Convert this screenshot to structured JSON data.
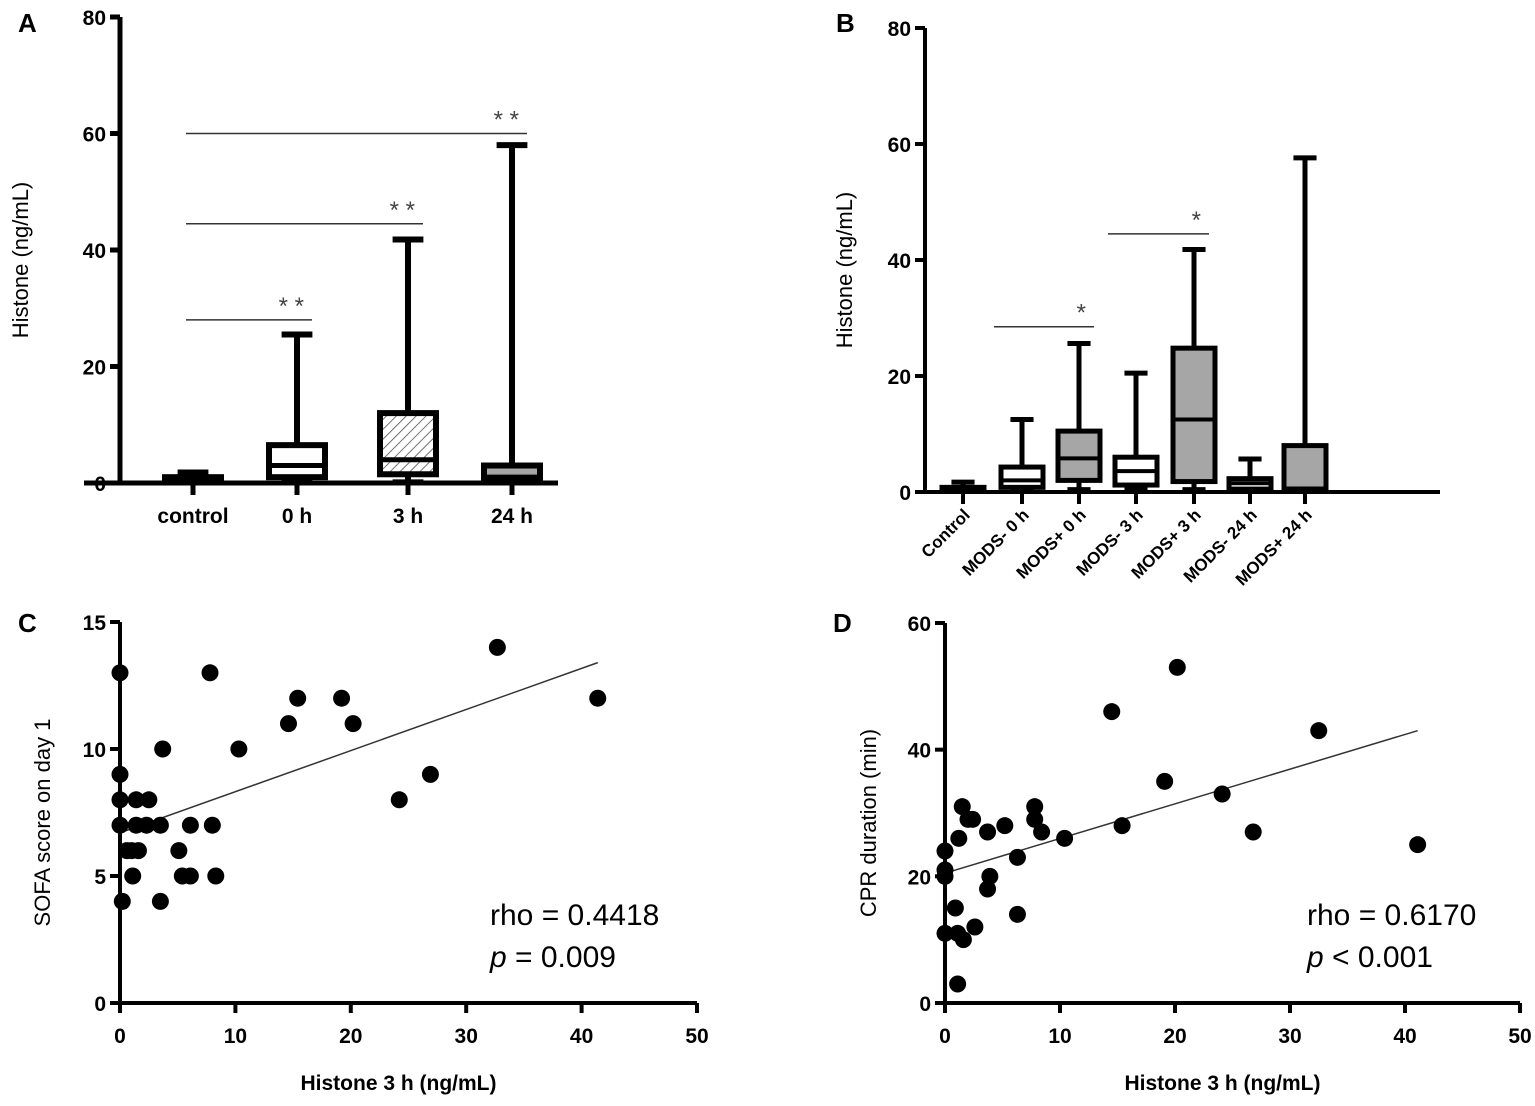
{
  "colors": {
    "ink": "#000000",
    "gray_fill": "#a6a6a6",
    "white_fill": "#ffffff",
    "sig_line": "#333333"
  },
  "chart_data": [
    {
      "panel": "A",
      "type": "box",
      "ylabel": "Histone (ng/mL)",
      "xlabel": "",
      "ylim": [
        0,
        80
      ],
      "yticks": [
        0,
        20,
        40,
        60,
        80
      ],
      "categories": [
        "control",
        "0 h",
        "3 h",
        "24 h"
      ],
      "boxes": [
        {
          "min": 0.2,
          "q1": 0.2,
          "median": 0.5,
          "q3": 1.0,
          "max": 1.8,
          "fill": "white"
        },
        {
          "min": 0.2,
          "q1": 1.0,
          "median": 3.0,
          "q3": 6.5,
          "max": 25.5,
          "fill": "white"
        },
        {
          "min": 0.2,
          "q1": 1.5,
          "median": 4.0,
          "q3": 12.0,
          "max": 41.8,
          "fill": "hatched"
        },
        {
          "min": 0.2,
          "q1": 0.5,
          "median": 1.0,
          "q3": 3.0,
          "max": 58.0,
          "fill": "gray"
        }
      ],
      "significance": [
        {
          "from": 0,
          "to": 1,
          "level": 28,
          "label": "* *"
        },
        {
          "from": 0,
          "to": 2,
          "level": 44.5,
          "label": "* *"
        },
        {
          "from": 0,
          "to": 3,
          "level": 60,
          "label": "* *"
        }
      ]
    },
    {
      "panel": "B",
      "type": "box",
      "ylabel": "Histone (ng/mL)",
      "xlabel": "",
      "ylim": [
        0,
        80
      ],
      "yticks": [
        0,
        20,
        40,
        60,
        80
      ],
      "categories": [
        "Control",
        "MODS- 0 h",
        "MODS+ 0 h",
        "MODS- 3 h",
        "MODS+ 3 h",
        "MODS- 24 h",
        "MODS+ 24 h"
      ],
      "boxes": [
        {
          "min": 0.2,
          "q1": 0.2,
          "median": 0.5,
          "q3": 0.8,
          "max": 1.7,
          "fill": "white"
        },
        {
          "min": 0.3,
          "q1": 0.8,
          "median": 2.0,
          "q3": 4.3,
          "max": 12.5,
          "fill": "white"
        },
        {
          "min": 0.5,
          "q1": 2.0,
          "median": 5.8,
          "q3": 10.5,
          "max": 25.6,
          "fill": "gray"
        },
        {
          "min": 0.5,
          "q1": 1.2,
          "median": 3.6,
          "q3": 6.0,
          "max": 20.5,
          "fill": "white"
        },
        {
          "min": 0.5,
          "q1": 1.8,
          "median": 12.5,
          "q3": 24.8,
          "max": 41.8,
          "fill": "gray"
        },
        {
          "min": 0.3,
          "q1": 0.5,
          "median": 1.5,
          "q3": 2.3,
          "max": 5.7,
          "fill": "white"
        },
        {
          "min": 0.3,
          "q1": 0.5,
          "median": 0.6,
          "q3": 8.0,
          "max": 57.6,
          "fill": "gray"
        }
      ],
      "significance": [
        {
          "from": 1,
          "to": 2,
          "level": 28.5,
          "label": "*"
        },
        {
          "from": 3,
          "to": 4,
          "level": 44.5,
          "label": "*"
        }
      ]
    },
    {
      "panel": "C",
      "type": "scatter",
      "xlabel": "Histone 3 h (ng/mL)",
      "ylabel": "SOFA  score on day 1",
      "xlim": [
        0,
        50
      ],
      "ylim": [
        0,
        15
      ],
      "xticks": [
        0,
        10,
        20,
        30,
        40,
        50
      ],
      "yticks": [
        0,
        5,
        10,
        15
      ],
      "points": [
        [
          0,
          13
        ],
        [
          0,
          9
        ],
        [
          0,
          8
        ],
        [
          0,
          7
        ],
        [
          0.2,
          4
        ],
        [
          0.6,
          6
        ],
        [
          1,
          6
        ],
        [
          1.1,
          5
        ],
        [
          1.4,
          7
        ],
        [
          1.6,
          6
        ],
        [
          1.4,
          8
        ],
        [
          2.3,
          7
        ],
        [
          2.5,
          8
        ],
        [
          3.5,
          7
        ],
        [
          3.7,
          10
        ],
        [
          3.5,
          4
        ],
        [
          5.1,
          6
        ],
        [
          5.4,
          5
        ],
        [
          6.1,
          5
        ],
        [
          6.1,
          7
        ],
        [
          7.8,
          13
        ],
        [
          8,
          7
        ],
        [
          8.3,
          5
        ],
        [
          10.3,
          10
        ],
        [
          14.6,
          11
        ],
        [
          15.4,
          12
        ],
        [
          19.2,
          12
        ],
        [
          20.2,
          11
        ],
        [
          24.2,
          8
        ],
        [
          26.9,
          9
        ],
        [
          32.7,
          14
        ],
        [
          41.4,
          12
        ]
      ],
      "trendline": [
        [
          0,
          6.7
        ],
        [
          41.4,
          13.4
        ]
      ],
      "annotations": {
        "rho": "rho = 0.4418",
        "p_symbol": "p",
        "p_text": " = 0.009"
      }
    },
    {
      "panel": "D",
      "type": "scatter",
      "xlabel": "Histone 3 h (ng/mL)",
      "ylabel": "CPR duration (min)",
      "xlim": [
        0,
        50
      ],
      "ylim": [
        0,
        60
      ],
      "xticks": [
        0,
        10,
        20,
        30,
        40,
        50
      ],
      "yticks": [
        0,
        20,
        40,
        60
      ],
      "points": [
        [
          0,
          24
        ],
        [
          0,
          21
        ],
        [
          0,
          20
        ],
        [
          0,
          11
        ],
        [
          0.9,
          15
        ],
        [
          1.1,
          11
        ],
        [
          1.1,
          3
        ],
        [
          1.2,
          26
        ],
        [
          1.5,
          31
        ],
        [
          1.6,
          10
        ],
        [
          2,
          29
        ],
        [
          2.4,
          29
        ],
        [
          2.6,
          12
        ],
        [
          3.7,
          27
        ],
        [
          3.7,
          18
        ],
        [
          3.9,
          20
        ],
        [
          5.2,
          28
        ],
        [
          6.3,
          23
        ],
        [
          6.3,
          14
        ],
        [
          7.8,
          31
        ],
        [
          7.8,
          29
        ],
        [
          8.4,
          27
        ],
        [
          10.4,
          26
        ],
        [
          14.5,
          46
        ],
        [
          15.4,
          28
        ],
        [
          19.1,
          35
        ],
        [
          20.2,
          53
        ],
        [
          24.1,
          33
        ],
        [
          26.8,
          27
        ],
        [
          32.5,
          43
        ],
        [
          41.1,
          25
        ]
      ],
      "trendline": [
        [
          0,
          20.5
        ],
        [
          41.1,
          43
        ]
      ],
      "annotations": {
        "rho": "rho = 0.6170",
        "p_symbol": "p",
        "p_text": " < 0.001"
      }
    }
  ]
}
